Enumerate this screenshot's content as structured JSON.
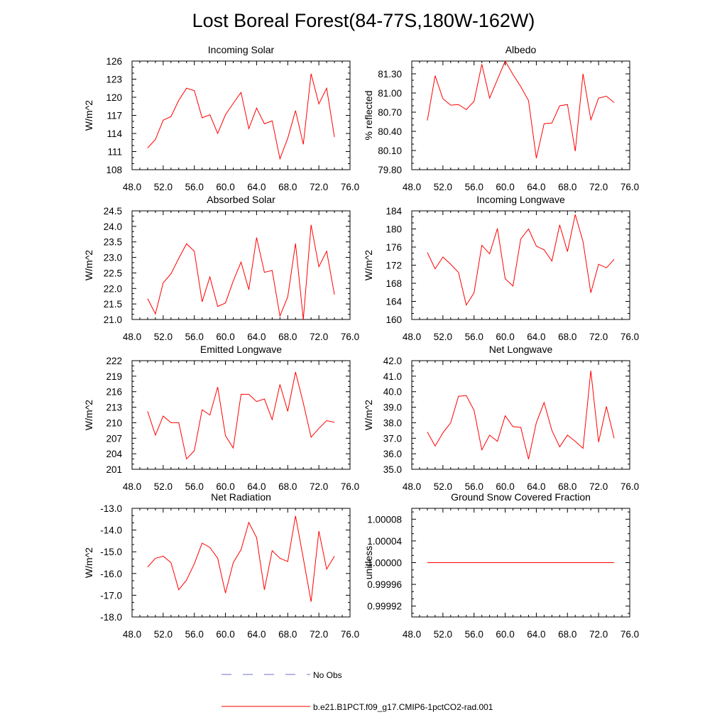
{
  "title": "Lost Boreal Forest(84-77S,180W-162W)",
  "chart_data": [
    {
      "type": "line",
      "title": "Incoming Solar",
      "ylabel": "W/m^2",
      "xlim": [
        48,
        76
      ],
      "ylim": [
        108,
        126
      ],
      "xticks": [
        "48.0",
        "52.0",
        "56.0",
        "60.0",
        "64.0",
        "68.0",
        "72.0",
        "76.0"
      ],
      "yticks": [
        "108",
        "111",
        "114",
        "117",
        "120",
        "123",
        "126"
      ],
      "x": [
        50,
        51,
        52,
        53,
        54,
        55,
        56,
        57,
        58,
        59,
        60,
        61,
        62,
        63,
        64,
        65,
        66,
        67,
        68,
        69,
        70,
        71,
        72,
        73,
        74
      ],
      "series": [
        {
          "name": "b.e21.B1PCT.f09_g17.CMIP6-1pctCO2-rad.001",
          "color": "#ff0000",
          "values": [
            111.6,
            113.0,
            116.2,
            116.8,
            119.5,
            121.5,
            121.1,
            116.6,
            117.1,
            114.0,
            117.1,
            119.0,
            120.8,
            114.8,
            118.2,
            115.6,
            116.1,
            109.8,
            113.2,
            117.8,
            112.2,
            123.9,
            118.9,
            121.5,
            113.4
          ]
        }
      ]
    },
    {
      "type": "line",
      "title": "Albedo",
      "ylabel": "% reflected",
      "xlim": [
        48,
        76
      ],
      "ylim": [
        79.8,
        81.5
      ],
      "xticks": [
        "48.0",
        "52.0",
        "56.0",
        "60.0",
        "64.0",
        "68.0",
        "72.0",
        "76.0"
      ],
      "yticks": [
        "79.80",
        "80.10",
        "80.40",
        "80.70",
        "81.00",
        "81.30"
      ],
      "x": [
        50,
        51,
        52,
        53,
        54,
        55,
        56,
        57,
        58,
        59,
        60,
        61,
        62,
        63,
        64,
        65,
        66,
        67,
        68,
        69,
        70,
        71,
        72,
        73,
        74
      ],
      "series": [
        {
          "name": "b.e21.B1PCT.f09_g17.CMIP6-1pctCO2-rad.001",
          "color": "#ff0000",
          "values": [
            80.57,
            81.27,
            80.91,
            80.81,
            80.82,
            80.74,
            80.87,
            81.45,
            80.92,
            81.21,
            81.5,
            81.29,
            81.1,
            80.88,
            79.98,
            80.52,
            80.53,
            80.8,
            80.82,
            80.09,
            81.3,
            80.58,
            80.92,
            80.95,
            80.85
          ]
        }
      ]
    },
    {
      "type": "line",
      "title": "Absorbed Solar",
      "ylabel": "W/m^2",
      "xlim": [
        48,
        76
      ],
      "ylim": [
        21.0,
        24.5
      ],
      "xticks": [
        "48.0",
        "52.0",
        "56.0",
        "60.0",
        "64.0",
        "68.0",
        "72.0",
        "76.0"
      ],
      "yticks": [
        "21.0",
        "21.5",
        "22.0",
        "22.5",
        "23.0",
        "23.5",
        "24.0",
        "24.5"
      ],
      "x": [
        50,
        51,
        52,
        53,
        54,
        55,
        56,
        57,
        58,
        59,
        60,
        61,
        62,
        63,
        64,
        65,
        66,
        67,
        68,
        69,
        70,
        71,
        72,
        73,
        74
      ],
      "series": [
        {
          "name": "b.e21.B1PCT.f09_g17.CMIP6-1pctCO2-rad.001",
          "color": "#ff0000",
          "values": [
            21.67,
            21.18,
            22.18,
            22.47,
            22.97,
            23.44,
            23.2,
            21.57,
            22.37,
            21.42,
            21.53,
            22.24,
            22.85,
            21.96,
            23.64,
            22.52,
            22.58,
            21.11,
            21.73,
            23.45,
            21.0,
            24.05,
            22.7,
            23.2,
            21.8
          ]
        }
      ]
    },
    {
      "type": "line",
      "title": "Incoming Longwave",
      "ylabel": "W/m^2",
      "xlim": [
        48,
        76
      ],
      "ylim": [
        160,
        184
      ],
      "xticks": [
        "48.0",
        "52.0",
        "56.0",
        "60.0",
        "64.0",
        "68.0",
        "72.0",
        "76.0"
      ],
      "yticks": [
        "160",
        "164",
        "168",
        "172",
        "176",
        "180",
        "184"
      ],
      "x": [
        50,
        51,
        52,
        53,
        54,
        55,
        56,
        57,
        58,
        59,
        60,
        61,
        62,
        63,
        64,
        65,
        66,
        67,
        68,
        69,
        70,
        71,
        72,
        73,
        74
      ],
      "series": [
        {
          "name": "b.e21.B1PCT.f09_g17.CMIP6-1pctCO2-rad.001",
          "color": "#ff0000",
          "values": [
            174.8,
            171.2,
            173.8,
            172.2,
            170.4,
            163.2,
            165.9,
            176.4,
            174.5,
            180.1,
            169.0,
            167.4,
            177.8,
            180.0,
            176.2,
            175.4,
            172.9,
            180.9,
            175.0,
            183.2,
            177.2,
            165.9,
            172.2,
            171.4,
            173.3
          ]
        }
      ]
    },
    {
      "type": "line",
      "title": "Emitted Longwave",
      "ylabel": "W/m^2",
      "xlim": [
        48,
        76
      ],
      "ylim": [
        201,
        222
      ],
      "xticks": [
        "48.0",
        "52.0",
        "56.0",
        "60.0",
        "64.0",
        "68.0",
        "72.0",
        "76.0"
      ],
      "yticks": [
        "201",
        "204",
        "207",
        "210",
        "213",
        "216",
        "219",
        "222"
      ],
      "x": [
        50,
        51,
        52,
        53,
        54,
        55,
        56,
        57,
        58,
        59,
        60,
        61,
        62,
        63,
        64,
        65,
        66,
        67,
        68,
        69,
        70,
        71,
        72,
        73,
        74
      ],
      "series": [
        {
          "name": "b.e21.B1PCT.f09_g17.CMIP6-1pctCO2-rad.001",
          "color": "#ff0000",
          "values": [
            212.2,
            207.6,
            211.3,
            210.0,
            210.0,
            203.0,
            204.6,
            212.5,
            211.5,
            216.9,
            207.5,
            205.1,
            215.5,
            215.5,
            214.1,
            214.6,
            210.6,
            217.4,
            212.2,
            219.8,
            213.8,
            207.2,
            208.9,
            210.4,
            210.1
          ]
        }
      ]
    },
    {
      "type": "line",
      "title": "Net Longwave",
      "ylabel": "W/m^2",
      "xlim": [
        48,
        76
      ],
      "ylim": [
        35.0,
        42.0
      ],
      "xticks": [
        "48.0",
        "52.0",
        "56.0",
        "60.0",
        "64.0",
        "68.0",
        "72.0",
        "76.0"
      ],
      "yticks": [
        "35.0",
        "36.0",
        "37.0",
        "38.0",
        "39.0",
        "40.0",
        "41.0",
        "42.0"
      ],
      "x": [
        50,
        51,
        52,
        53,
        54,
        55,
        56,
        57,
        58,
        59,
        60,
        61,
        62,
        63,
        64,
        65,
        66,
        67,
        68,
        69,
        70,
        71,
        72,
        73,
        74
      ],
      "series": [
        {
          "name": "b.e21.B1PCT.f09_g17.CMIP6-1pctCO2-rad.001",
          "color": "#ff0000",
          "values": [
            37.4,
            36.5,
            37.35,
            38.0,
            39.7,
            39.75,
            38.8,
            36.25,
            37.2,
            36.8,
            38.45,
            37.75,
            37.7,
            35.65,
            38.0,
            39.3,
            37.5,
            36.45,
            37.2,
            36.8,
            36.35,
            41.35,
            36.75,
            39.05,
            37.0
          ]
        }
      ]
    },
    {
      "type": "line",
      "title": "Net Radiation",
      "ylabel": "W/m^2",
      "xlim": [
        48,
        76
      ],
      "ylim": [
        -18.0,
        -13.0
      ],
      "xticks": [
        "48.0",
        "52.0",
        "56.0",
        "60.0",
        "64.0",
        "68.0",
        "72.0",
        "76.0"
      ],
      "yticks": [
        "-18.0",
        "-17.0",
        "-16.0",
        "-15.0",
        "-14.0",
        "-13.0"
      ],
      "x": [
        50,
        51,
        52,
        53,
        54,
        55,
        56,
        57,
        58,
        59,
        60,
        61,
        62,
        63,
        64,
        65,
        66,
        67,
        68,
        69,
        70,
        71,
        72,
        73,
        74
      ],
      "series": [
        {
          "name": "b.e21.B1PCT.f09_g17.CMIP6-1pctCO2-rad.001",
          "color": "#ff0000",
          "values": [
            -15.7,
            -15.3,
            -15.2,
            -15.5,
            -16.75,
            -16.3,
            -15.55,
            -14.6,
            -14.8,
            -15.3,
            -16.9,
            -15.5,
            -14.9,
            -13.65,
            -14.35,
            -16.75,
            -14.95,
            -15.3,
            -15.45,
            -13.35,
            -15.3,
            -17.3,
            -14.05,
            -15.8,
            -15.2
          ]
        }
      ]
    },
    {
      "type": "line",
      "title": "Ground Snow Covered Fraction",
      "ylabel": "unitless",
      "xlim": [
        48,
        76
      ],
      "ylim": [
        0.9999,
        1.0001
      ],
      "xticks": [
        "48.0",
        "52.0",
        "56.0",
        "60.0",
        "64.0",
        "68.0",
        "72.0",
        "76.0"
      ],
      "yticks": [
        "0.99992",
        "0.99996",
        "1.00000",
        "1.00004",
        "1.00008"
      ],
      "x": [
        50,
        74
      ],
      "series": [
        {
          "name": "b.e21.B1PCT.f09_g17.CMIP6-1pctCO2-rad.001",
          "color": "#ff0000",
          "values": [
            1.0,
            1.0
          ]
        }
      ]
    }
  ],
  "legend": [
    {
      "label": "No Obs",
      "color": "#6f6fc8",
      "dash": "dashed"
    },
    {
      "label": "b.e21.B1PCT.f09_g17.CMIP6-1pctCO2-rad.001",
      "color": "#ff0000",
      "dash": "solid"
    }
  ]
}
